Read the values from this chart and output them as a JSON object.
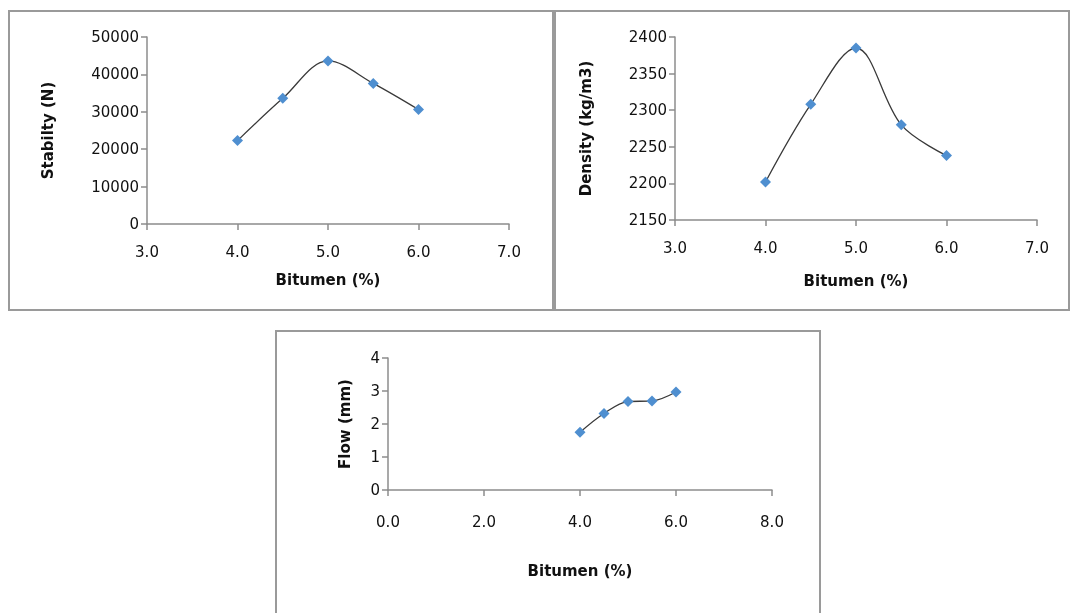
{
  "chart_data": [
    {
      "type": "line",
      "xlabel": "Bitumen (%)",
      "ylabel": "Stabilty (N)",
      "x": [
        4.0,
        4.5,
        5.0,
        5.5,
        6.0
      ],
      "series": [
        {
          "color": "#4f8fd0",
          "values": [
            22300,
            33600,
            43600,
            37600,
            30600
          ]
        }
      ],
      "xlim": [
        3,
        7
      ],
      "xticks": [
        {
          "value": 3,
          "label": "3.0"
        },
        {
          "value": 4,
          "label": "4.0"
        },
        {
          "value": 5,
          "label": "5.0"
        },
        {
          "value": 6,
          "label": "6.0"
        },
        {
          "value": 7,
          "label": "7.0"
        }
      ],
      "ylim": [
        0,
        50000
      ],
      "yticks": [
        0,
        10000,
        20000,
        30000,
        40000,
        50000
      ],
      "marker": "diamond",
      "grid": false,
      "legend": false
    },
    {
      "type": "line",
      "xlabel": "Bitumen (%)",
      "ylabel": "Density (kg/m3)",
      "x": [
        4.0,
        4.5,
        5.0,
        5.5,
        6.0
      ],
      "series": [
        {
          "color": "#4f8fd0",
          "values": [
            2202,
            2308,
            2385,
            2280,
            2238
          ]
        }
      ],
      "xlim": [
        3,
        7
      ],
      "xticks": [
        {
          "value": 3,
          "label": "3.0"
        },
        {
          "value": 4,
          "label": "4.0"
        },
        {
          "value": 5,
          "label": "5.0"
        },
        {
          "value": 6,
          "label": "6.0"
        },
        {
          "value": 7,
          "label": "7.0"
        }
      ],
      "ylim": [
        2150,
        2400
      ],
      "yticks": [
        2150,
        2200,
        2250,
        2300,
        2350,
        2400
      ],
      "marker": "diamond",
      "grid": false,
      "legend": false
    },
    {
      "type": "line",
      "xlabel": "Bitumen (%)",
      "ylabel": "Flow (mm)",
      "x": [
        4.0,
        4.5,
        5.0,
        5.5,
        6.0
      ],
      "series": [
        {
          "color": "#4f8fd0",
          "values": [
            1.75,
            2.32,
            2.68,
            2.7,
            2.97
          ]
        }
      ],
      "xlim": [
        0,
        8
      ],
      "xticks": [
        {
          "value": 0,
          "label": "0.0"
        },
        {
          "value": 2,
          "label": "2.0"
        },
        {
          "value": 4,
          "label": "4.0"
        },
        {
          "value": 6,
          "label": "6.0"
        },
        {
          "value": 8,
          "label": "8.0"
        }
      ],
      "ylim": [
        0,
        4
      ],
      "yticks": [
        0,
        1,
        2,
        3,
        4
      ],
      "marker": "diamond",
      "grid": false,
      "legend": false
    }
  ]
}
